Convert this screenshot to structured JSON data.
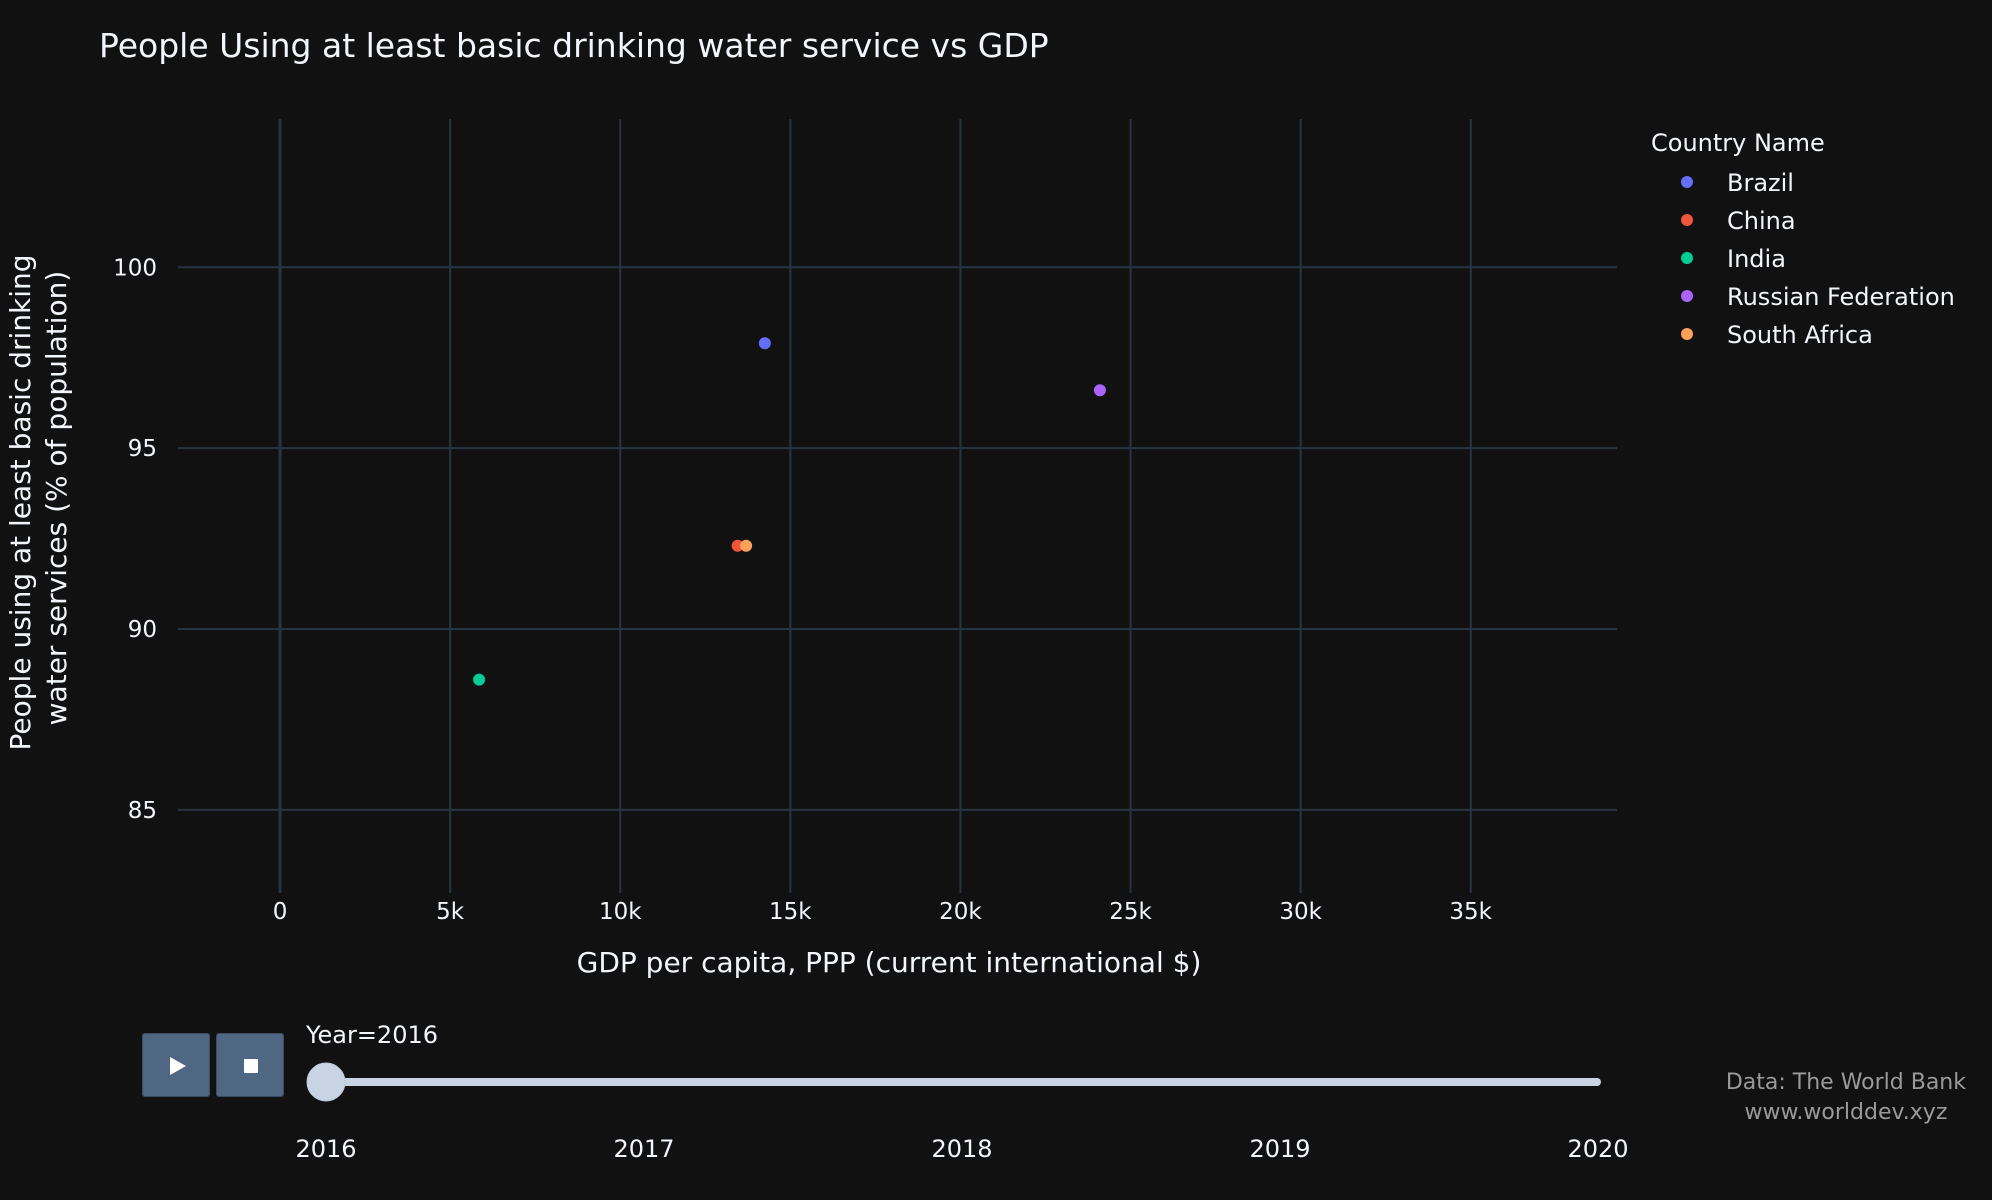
{
  "chart_data": {
    "type": "scatter",
    "title": "People Using at least basic drinking water service vs GDP",
    "xlabel": "GDP per capita, PPP (current international $)",
    "ylabel_lines": [
      "People using at least basic drinking",
      "water services (% of population)"
    ],
    "xlim": [
      -3000,
      39300
    ],
    "ylim": [
      82.7,
      104.1
    ],
    "x_ticks": [
      0,
      5000,
      10000,
      15000,
      20000,
      25000,
      30000,
      35000
    ],
    "x_tick_labels": [
      "0",
      "5k",
      "10k",
      "15k",
      "20k",
      "25k",
      "30k",
      "35k"
    ],
    "y_ticks": [
      85,
      90,
      95,
      100
    ],
    "y_tick_labels": [
      "85",
      "90",
      "95",
      "100"
    ],
    "grid": true,
    "legend": {
      "title": "Country Name",
      "placement": "top-right",
      "entries": [
        "Brazil",
        "China",
        "India",
        "Russian Federation",
        "South Africa"
      ]
    },
    "series": [
      {
        "name": "Brazil",
        "color": "#636efa",
        "x": [
          14250
        ],
        "y": [
          97.9
        ]
      },
      {
        "name": "China",
        "color": "#ef553b",
        "x": [
          13450
        ],
        "y": [
          92.3
        ]
      },
      {
        "name": "India",
        "color": "#00cc96",
        "x": [
          5850
        ],
        "y": [
          88.6
        ]
      },
      {
        "name": "Russian Federation",
        "color": "#ab63fa",
        "x": [
          24100
        ],
        "y": [
          96.6
        ]
      },
      {
        "name": "South Africa",
        "color": "#ffa15a",
        "x": [
          13700
        ],
        "y": [
          92.3
        ]
      }
    ]
  },
  "slider": {
    "current_label": "Year=2016",
    "current_value": "2016",
    "steps": [
      "2016",
      "2017",
      "2018",
      "2019",
      "2020"
    ]
  },
  "controls": {
    "play_icon": "play-icon",
    "stop_icon": "stop-icon"
  },
  "credit": {
    "line1": "Data: The World Bank",
    "line2": "www.worlddev.xyz"
  },
  "colors": {
    "background": "#111111",
    "grid": "#283442",
    "text": "#f2f5fa",
    "slider": "#c8d4e3",
    "button": "#506784"
  }
}
